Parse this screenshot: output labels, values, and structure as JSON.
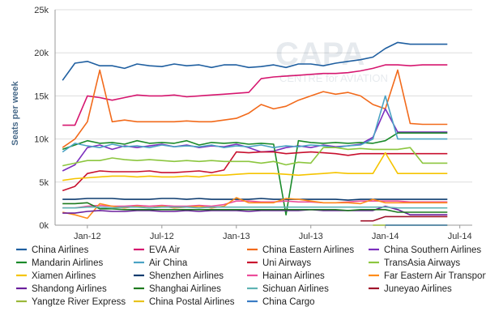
{
  "chart_data": {
    "type": "line",
    "ylabel": "Seats per week",
    "y_ticks": [
      "0k",
      "5k",
      "10k",
      "15k",
      "20k",
      "25k"
    ],
    "ylim": [
      0,
      25000
    ],
    "x_tick_labels": [
      "Jan-12",
      "Jul-12",
      "Jan-13",
      "Jul-13",
      "Jan-14",
      "Jul-14"
    ],
    "x": [
      "2011-11",
      "2011-12",
      "2012-01",
      "2012-02",
      "2012-03",
      "2012-04",
      "2012-05",
      "2012-06",
      "2012-07",
      "2012-08",
      "2012-09",
      "2012-10",
      "2012-11",
      "2012-12",
      "2013-01",
      "2013-02",
      "2013-03",
      "2013-04",
      "2013-05",
      "2013-06",
      "2013-07",
      "2013-08",
      "2013-09",
      "2013-10",
      "2013-11",
      "2013-12",
      "2014-01",
      "2014-02",
      "2014-03",
      "2014-04",
      "2014-05",
      "2014-06"
    ],
    "grid": "horizontal",
    "legend_position": "bottom",
    "series": [
      {
        "name": "China Airlines",
        "color": "#1f5fa0",
        "values": [
          16800,
          18800,
          19000,
          18500,
          18500,
          18200,
          18700,
          18500,
          18400,
          18700,
          18500,
          18600,
          18300,
          18600,
          18600,
          18300,
          18400,
          18600,
          18300,
          18700,
          18700,
          18500,
          18800,
          19000,
          19200,
          19500,
          20500,
          21200,
          21000,
          21000,
          21000,
          21000
        ]
      },
      {
        "name": "EVA Air",
        "color": "#d6166f",
        "values": [
          11600,
          11600,
          15000,
          14800,
          14500,
          14800,
          15100,
          15000,
          15000,
          15100,
          14900,
          15000,
          15100,
          15200,
          15300,
          15400,
          17000,
          17200,
          17300,
          17400,
          17500,
          17600,
          17600,
          17700,
          17900,
          18200,
          18600,
          18600,
          18500,
          18600,
          18600,
          18600
        ]
      },
      {
        "name": "China Eastern Airlines",
        "color": "#f26a1b",
        "values": [
          9000,
          10000,
          12000,
          18000,
          12000,
          12200,
          12000,
          12000,
          12000,
          12000,
          12100,
          12000,
          12000,
          12200,
          12400,
          13000,
          14000,
          13500,
          13800,
          14500,
          15000,
          15500,
          15200,
          15400,
          15000,
          14000,
          13500,
          18000,
          11800,
          11700,
          11700,
          11700
        ]
      },
      {
        "name": "China Southern Airlines",
        "color": "#7b2fbe",
        "values": [
          6300,
          7000,
          9000,
          9300,
          8800,
          9200,
          9000,
          9200,
          9400,
          9100,
          9300,
          9000,
          9200,
          9100,
          9400,
          9000,
          8500,
          8600,
          9000,
          9200,
          9000,
          9300,
          9100,
          9200,
          9400,
          10200,
          13500,
          10800,
          10800,
          10800,
          10800,
          10800
        ]
      },
      {
        "name": "Mandarin Airlines",
        "color": "#1a8a2a",
        "values": [
          8800,
          9300,
          9800,
          9500,
          9600,
          9400,
          9800,
          9500,
          9600,
          9500,
          9800,
          9300,
          9600,
          9500,
          9600,
          9400,
          9500,
          9400,
          1200,
          9800,
          9600,
          9500,
          9600,
          9500,
          9600,
          9500,
          9800,
          10700,
          10700,
          10700,
          10700,
          10700
        ]
      },
      {
        "name": "Air China",
        "color": "#4aa3c4",
        "values": [
          8500,
          9500,
          9200,
          9000,
          9400,
          9100,
          9200,
          9000,
          9300,
          9100,
          9200,
          9100,
          9300,
          9000,
          9200,
          9100,
          9300,
          9000,
          9200,
          9100,
          9300,
          9200,
          9000,
          9200,
          9300,
          10000,
          15000,
          10000,
          10000,
          10000,
          10000,
          10000
        ]
      },
      {
        "name": "Uni Airways",
        "color": "#c8102e",
        "values": [
          4000,
          4500,
          6000,
          6300,
          6200,
          6200,
          6200,
          6300,
          6100,
          6100,
          6200,
          6300,
          6100,
          6400,
          8500,
          8400,
          8500,
          8500,
          8300,
          8400,
          8500,
          8400,
          8300,
          8100,
          8300,
          8300,
          8300,
          8300,
          8300,
          8300,
          8300,
          8300
        ]
      },
      {
        "name": "TransAsia Airways",
        "color": "#8cc63f",
        "values": [
          6900,
          7200,
          7500,
          7500,
          7800,
          7600,
          7500,
          7600,
          7500,
          7400,
          7500,
          7400,
          7500,
          7400,
          7400,
          7400,
          7200,
          7400,
          7000,
          7300,
          7200,
          9000,
          9000,
          8800,
          8900,
          8800,
          8800,
          8800,
          9000,
          7200,
          7200,
          7200
        ]
      },
      {
        "name": "Xiamen Airlines",
        "color": "#f5c400",
        "values": [
          5200,
          5400,
          5500,
          5600,
          5700,
          5700,
          5600,
          5700,
          5600,
          5600,
          5700,
          5600,
          5800,
          5800,
          5900,
          6000,
          6000,
          6000,
          5900,
          5800,
          5900,
          6000,
          6100,
          6000,
          6000,
          6000,
          8400,
          6000,
          6000,
          6000,
          6000,
          6000
        ]
      },
      {
        "name": "Shenzhen Airlines",
        "color": "#0d3b6f",
        "values": [
          3000,
          3000,
          3100,
          3100,
          3100,
          3000,
          3000,
          3000,
          3100,
          3100,
          3000,
          3100,
          3000,
          3000,
          3000,
          3000,
          3100,
          3000,
          3000,
          3000,
          3000,
          3000,
          3000,
          2900,
          3000,
          3000,
          3000,
          3000,
          3000,
          3000,
          3000,
          3000
        ]
      },
      {
        "name": "Hainan Airlines",
        "color": "#ec4c9a",
        "values": [
          2000,
          2000,
          2200,
          2300,
          2200,
          2200,
          2300,
          2200,
          2300,
          2200,
          2200,
          2300,
          2200,
          2400,
          2800,
          2800,
          2700,
          2700,
          2800,
          2700,
          2700,
          2600,
          2600,
          2700,
          2800,
          2800,
          2800,
          2800,
          2700,
          2700,
          2700,
          2700
        ]
      },
      {
        "name": "Far Eastern Air Transport",
        "color": "#ff8c1a",
        "values": [
          1500,
          1200,
          800,
          2500,
          2200,
          2000,
          2200,
          2000,
          2200,
          2000,
          2100,
          2200,
          2000,
          2200,
          3200,
          2600,
          2600,
          2600,
          3100,
          3000,
          2800,
          2600,
          2600,
          2600,
          2500,
          3000,
          2600,
          2600,
          2600,
          2600,
          2600,
          2600
        ]
      },
      {
        "name": "Shandong Airlines",
        "color": "#6a1f9c",
        "values": [
          1400,
          1400,
          1600,
          1700,
          1600,
          1600,
          1700,
          1700,
          1600,
          1600,
          1700,
          1600,
          1700,
          1700,
          1700,
          1600,
          1700,
          1700,
          1700,
          1700,
          1800,
          1700,
          1700,
          1700,
          1700,
          1700,
          2200,
          1800,
          1200,
          1200,
          1200,
          1200
        ]
      },
      {
        "name": "Shanghai Airlines",
        "color": "#1e7a1e",
        "values": [
          2500,
          2500,
          2600,
          1900,
          1900,
          1800,
          1800,
          1800,
          1800,
          1800,
          1800,
          1800,
          1800,
          1800,
          1800,
          1800,
          1800,
          1800,
          1800,
          1800,
          1800,
          1800,
          1800,
          1700,
          1800,
          1800,
          1800,
          1500,
          1500,
          1500,
          1500,
          1500
        ]
      },
      {
        "name": "Sichuan Airlines",
        "color": "#5fb3b3",
        "values": [
          2000,
          2000,
          2100,
          2100,
          2000,
          2100,
          2100,
          2000,
          2100,
          2100,
          2100,
          2000,
          2100,
          2100,
          2100,
          2100,
          2100,
          2100,
          2100,
          2100,
          2100,
          2100,
          2100,
          2100,
          2100,
          2100,
          2100,
          2000,
          2000,
          2000,
          2000,
          2000
        ]
      },
      {
        "name": "Juneyao Airlines",
        "color": "#a0122a",
        "values": [
          null,
          null,
          null,
          null,
          null,
          null,
          null,
          null,
          null,
          null,
          null,
          null,
          null,
          null,
          null,
          null,
          null,
          null,
          null,
          null,
          null,
          null,
          null,
          null,
          500,
          500,
          1000,
          1000,
          1000,
          1000,
          1000,
          1000
        ]
      },
      {
        "name": "Yangtze River Express",
        "color": "#9ab83a",
        "values": [
          null,
          null,
          null,
          null,
          null,
          null,
          null,
          null,
          null,
          null,
          null,
          null,
          null,
          null,
          null,
          null,
          null,
          null,
          null,
          null,
          null,
          null,
          null,
          null,
          null,
          0,
          0,
          0,
          0,
          0,
          0,
          0
        ]
      },
      {
        "name": "China Postal Airlines",
        "color": "#e8c21c",
        "values": [
          null,
          null,
          null,
          null,
          null,
          null,
          null,
          null,
          null,
          null,
          null,
          null,
          null,
          null,
          null,
          null,
          null,
          null,
          null,
          null,
          null,
          null,
          null,
          null,
          null,
          null,
          0,
          0,
          0,
          0,
          0,
          0
        ]
      },
      {
        "name": "China Cargo",
        "color": "#3a7cc4",
        "values": [
          null,
          null,
          null,
          null,
          null,
          null,
          null,
          null,
          null,
          null,
          null,
          null,
          null,
          null,
          null,
          null,
          null,
          null,
          null,
          null,
          null,
          null,
          null,
          null,
          null,
          null,
          0,
          0,
          0,
          0,
          0,
          0
        ]
      }
    ]
  },
  "watermark": {
    "brand": "CAPA",
    "tagline": "CENTRE for AVIATION"
  }
}
